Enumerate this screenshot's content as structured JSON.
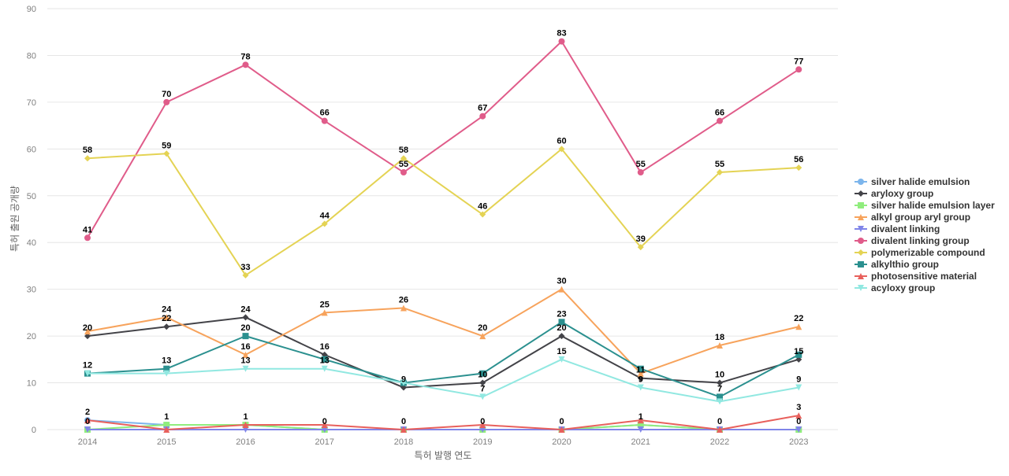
{
  "chart_data": {
    "type": "line",
    "xlabel": "특허 발행 연도",
    "ylabel": "특허 출원 공개량",
    "ylim": [
      0,
      90
    ],
    "yticks": [
      0,
      10,
      20,
      30,
      40,
      50,
      60,
      70,
      80,
      90
    ],
    "grid": true,
    "legend_position": "right",
    "categories": [
      "2014",
      "2015",
      "2016",
      "2017",
      "2018",
      "2019",
      "2020",
      "2021",
      "2022",
      "2023"
    ],
    "series": [
      {
        "name": "silver halide emulsion",
        "color": "#7cb5ec",
        "marker": "circle",
        "values": [
          2,
          1,
          1,
          0,
          0,
          0,
          0,
          1,
          0,
          0
        ],
        "show_labels": false
      },
      {
        "name": "aryloxy group",
        "color": "#434348",
        "marker": "diamond",
        "values": [
          20,
          22,
          24,
          16,
          9,
          10,
          20,
          11,
          10,
          15
        ],
        "show_labels": true
      },
      {
        "name": "silver halide emulsion layer",
        "color": "#90ed7d",
        "marker": "square",
        "values": [
          0,
          1,
          1,
          0,
          0,
          0,
          0,
          1,
          0,
          0
        ],
        "show_labels": true
      },
      {
        "name": "alkyl group aryl group",
        "color": "#f7a35c",
        "marker": "triangle",
        "values": [
          21,
          24,
          16,
          25,
          26,
          20,
          30,
          12,
          18,
          22
        ],
        "show_labels": true
      },
      {
        "name": "divalent linking",
        "color": "#8085e9",
        "marker": "triangle-down",
        "values": [
          0,
          0,
          0,
          0,
          0,
          0,
          0,
          0,
          0,
          0
        ],
        "show_labels": false
      },
      {
        "name": "divalent linking group",
        "color": "#e05c8a",
        "marker": "circle",
        "values": [
          41,
          70,
          78,
          66,
          55,
          67,
          83,
          55,
          66,
          77
        ],
        "show_labels": true
      },
      {
        "name": "polymerizable compound",
        "color": "#e4d354",
        "marker": "diamond",
        "values": [
          58,
          59,
          33,
          44,
          58,
          46,
          60,
          39,
          55,
          56
        ],
        "show_labels": true
      },
      {
        "name": "alkylthio group",
        "color": "#2b908f",
        "marker": "square",
        "values": [
          12,
          13,
          20,
          15,
          10,
          12,
          23,
          13,
          7,
          16
        ],
        "show_labels": false
      },
      {
        "name": "photosensitive material",
        "color": "#e8605c",
        "marker": "triangle",
        "values": [
          2,
          0,
          1,
          1,
          0,
          1,
          0,
          2,
          0,
          3
        ],
        "show_labels": false
      },
      {
        "name": "acyloxy group",
        "color": "#91e8e1",
        "marker": "triangle-down",
        "values": [
          12,
          12,
          13,
          13,
          10,
          7,
          15,
          9,
          6,
          9
        ],
        "show_labels": false
      }
    ],
    "data_labels": [
      {
        "category": "2014",
        "text": "58",
        "value": 58
      },
      {
        "category": "2014",
        "text": "41",
        "value": 41
      },
      {
        "category": "2014",
        "text": "20",
        "value": 20
      },
      {
        "category": "2014",
        "text": "12",
        "value": 12
      },
      {
        "category": "2014",
        "text": "2",
        "value": 2
      },
      {
        "category": "2014",
        "text": "0",
        "value": 0
      },
      {
        "category": "2015",
        "text": "70",
        "value": 70
      },
      {
        "category": "2015",
        "text": "59",
        "value": 59
      },
      {
        "category": "2015",
        "text": "24",
        "value": 24
      },
      {
        "category": "2015",
        "text": "22",
        "value": 22
      },
      {
        "category": "2015",
        "text": "13",
        "value": 13
      },
      {
        "category": "2015",
        "text": "1",
        "value": 1
      },
      {
        "category": "2016",
        "text": "78",
        "value": 78
      },
      {
        "category": "2016",
        "text": "33",
        "value": 33
      },
      {
        "category": "2016",
        "text": "24",
        "value": 24
      },
      {
        "category": "2016",
        "text": "20",
        "value": 20
      },
      {
        "category": "2016",
        "text": "16",
        "value": 16
      },
      {
        "category": "2016",
        "text": "13",
        "value": 13
      },
      {
        "category": "2016",
        "text": "1",
        "value": 1
      },
      {
        "category": "2017",
        "text": "66",
        "value": 66
      },
      {
        "category": "2017",
        "text": "44",
        "value": 44
      },
      {
        "category": "2017",
        "text": "25",
        "value": 25
      },
      {
        "category": "2017",
        "text": "16",
        "value": 16
      },
      {
        "category": "2017",
        "text": "13",
        "value": 13
      },
      {
        "category": "2017",
        "text": "0",
        "value": 0
      },
      {
        "category": "2018",
        "text": "58",
        "value": 58
      },
      {
        "category": "2018",
        "text": "55",
        "value": 55
      },
      {
        "category": "2018",
        "text": "26",
        "value": 26
      },
      {
        "category": "2018",
        "text": "9",
        "value": 9
      },
      {
        "category": "2018",
        "text": "0",
        "value": 0
      },
      {
        "category": "2019",
        "text": "67",
        "value": 67
      },
      {
        "category": "2019",
        "text": "46",
        "value": 46
      },
      {
        "category": "2019",
        "text": "20",
        "value": 20
      },
      {
        "category": "2019",
        "text": "10",
        "value": 10
      },
      {
        "category": "2019",
        "text": "7",
        "value": 7
      },
      {
        "category": "2019",
        "text": "0",
        "value": 0
      },
      {
        "category": "2020",
        "text": "83",
        "value": 83
      },
      {
        "category": "2020",
        "text": "60",
        "value": 60
      },
      {
        "category": "2020",
        "text": "30",
        "value": 30
      },
      {
        "category": "2020",
        "text": "23",
        "value": 23
      },
      {
        "category": "2020",
        "text": "20",
        "value": 20
      },
      {
        "category": "2020",
        "text": "15",
        "value": 15
      },
      {
        "category": "2020",
        "text": "0",
        "value": 0
      },
      {
        "category": "2021",
        "text": "55",
        "value": 55
      },
      {
        "category": "2021",
        "text": "39",
        "value": 39
      },
      {
        "category": "2021",
        "text": "11",
        "value": 11
      },
      {
        "category": "2021",
        "text": "9",
        "value": 9
      },
      {
        "category": "2021",
        "text": "1",
        "value": 1
      },
      {
        "category": "2022",
        "text": "66",
        "value": 66
      },
      {
        "category": "2022",
        "text": "55",
        "value": 55
      },
      {
        "category": "2022",
        "text": "18",
        "value": 18
      },
      {
        "category": "2022",
        "text": "10",
        "value": 10
      },
      {
        "category": "2022",
        "text": "7",
        "value": 7
      },
      {
        "category": "2022",
        "text": "0",
        "value": 0
      },
      {
        "category": "2023",
        "text": "77",
        "value": 77
      },
      {
        "category": "2023",
        "text": "56",
        "value": 56
      },
      {
        "category": "2023",
        "text": "22",
        "value": 22
      },
      {
        "category": "2023",
        "text": "15",
        "value": 15
      },
      {
        "category": "2023",
        "text": "9",
        "value": 9
      },
      {
        "category": "2023",
        "text": "3",
        "value": 3
      },
      {
        "category": "2023",
        "text": "0",
        "value": 0
      }
    ]
  }
}
